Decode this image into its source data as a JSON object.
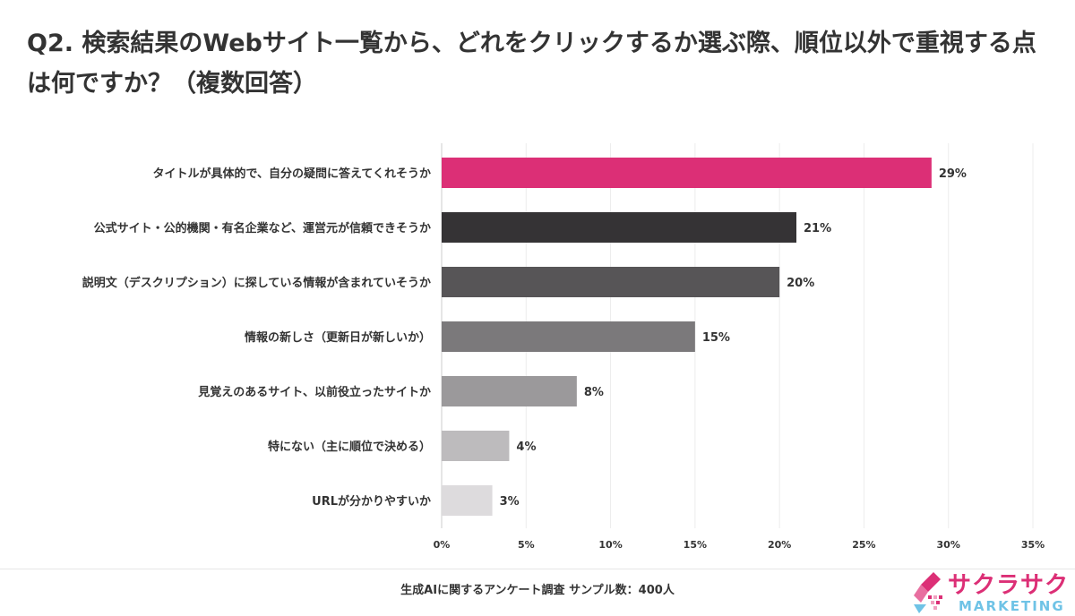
{
  "title": "Q2. 検索結果のWebサイト一覧から、どれをクリックするか選ぶ際、順位以外で重視する点は何ですか？（複数回答）",
  "footnote": "生成AIに関するアンケート調査 サンプル数：400人",
  "logo": {
    "top_text": "サクラサク",
    "bottom_text": "MARKETING"
  },
  "chart_data": {
    "type": "bar",
    "orientation": "horizontal",
    "title": "Q2. 検索結果のWebサイト一覧から、どれをクリックするか選ぶ際、順位以外で重視する点は何ですか？（複数回答）",
    "xlabel": "",
    "ylabel": "",
    "xlim": [
      0,
      35
    ],
    "grid": true,
    "categories": [
      "タイトルが具体的で、自分の疑問に答えてくれそうか",
      "公式サイト・公的機関・有名企業など、運営元が信頼できそうか",
      "説明文（デスクリプション）に探している情報が含まれていそうか",
      "情報の新しさ（更新日が新しいか）",
      "見覚えのあるサイト、以前役立ったサイトか",
      "特にない（主に順位で決める）",
      "URLが分かりやすいか"
    ],
    "values": [
      29,
      21,
      20,
      15,
      8,
      4,
      3
    ],
    "value_labels": [
      "29%",
      "21%",
      "20%",
      "15%",
      "8%",
      "4%",
      "3%"
    ],
    "colors": [
      "#dc2f76",
      "#353335",
      "#575557",
      "#7b797b",
      "#9b999b",
      "#bdbbbd",
      "#dddbdd"
    ],
    "ticks": [
      0,
      5,
      10,
      15,
      20,
      25,
      30,
      35
    ],
    "tick_labels": [
      "0%",
      "5%",
      "10%",
      "15%",
      "20%",
      "25%",
      "30%",
      "35%"
    ]
  }
}
